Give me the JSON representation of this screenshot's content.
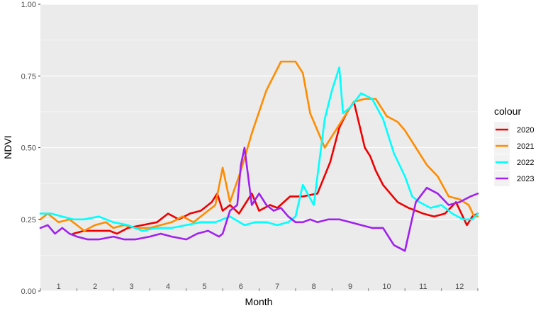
{
  "chart_data": {
    "type": "line",
    "xlabel": "Month",
    "ylabel": "NDVI",
    "ylim": [
      0,
      1
    ],
    "y_ticks": [
      "0.00",
      "0.25",
      "0.50",
      "0.75",
      "1.00"
    ],
    "x_month_labels": [
      "1",
      "2",
      "3",
      "4",
      "5",
      "6",
      "7",
      "8",
      "9",
      "10",
      "11",
      "12"
    ],
    "xlim": [
      0,
      12
    ],
    "grid": true,
    "legend": {
      "title": "colour",
      "position": "right"
    },
    "series": [
      {
        "name": "2020",
        "color": "#ee0000",
        "x": [
          0.9,
          1.2,
          1.6,
          1.9,
          2.1,
          2.4,
          2.8,
          3.2,
          3.5,
          3.8,
          4.1,
          4.4,
          4.7,
          4.85,
          5.0,
          5.2,
          5.45,
          5.6,
          5.8,
          6.0,
          6.3,
          6.5,
          6.85,
          7.2,
          7.6,
          7.95,
          8.2,
          8.4,
          8.6,
          8.9,
          9.05,
          9.2,
          9.4,
          9.6,
          9.8,
          10.1,
          10.5,
          10.8,
          11.1,
          11.4,
          11.7,
          11.85,
          12.0
        ],
        "y": [
          0.2,
          0.21,
          0.21,
          0.21,
          0.2,
          0.22,
          0.23,
          0.24,
          0.27,
          0.25,
          0.27,
          0.28,
          0.31,
          0.34,
          0.28,
          0.3,
          0.27,
          0.3,
          0.34,
          0.28,
          0.3,
          0.29,
          0.33,
          0.33,
          0.34,
          0.45,
          0.57,
          0.62,
          0.66,
          0.5,
          0.47,
          0.42,
          0.37,
          0.34,
          0.31,
          0.29,
          0.27,
          0.26,
          0.27,
          0.31,
          0.23,
          0.26,
          0.27
        ]
      },
      {
        "name": "2021",
        "color": "#ff8c00",
        "x": [
          0.0,
          0.2,
          0.5,
          0.8,
          1.0,
          1.2,
          1.5,
          1.8,
          2.0,
          2.3,
          2.6,
          3.0,
          3.3,
          3.6,
          3.9,
          4.2,
          4.5,
          4.8,
          5.0,
          5.2,
          5.5,
          5.8,
          6.2,
          6.6,
          7.0,
          7.2,
          7.4,
          7.8,
          8.2,
          8.6,
          8.9,
          9.2,
          9.5,
          9.8,
          10.0,
          10.3,
          10.6,
          10.9,
          11.2,
          11.5,
          11.75,
          11.9,
          12.0
        ],
        "y": [
          0.25,
          0.27,
          0.24,
          0.25,
          0.23,
          0.21,
          0.23,
          0.24,
          0.22,
          0.23,
          0.22,
          0.22,
          0.23,
          0.24,
          0.26,
          0.24,
          0.27,
          0.3,
          0.43,
          0.31,
          0.42,
          0.55,
          0.7,
          0.8,
          0.8,
          0.76,
          0.62,
          0.5,
          0.58,
          0.66,
          0.67,
          0.67,
          0.61,
          0.59,
          0.56,
          0.5,
          0.44,
          0.4,
          0.33,
          0.32,
          0.3,
          0.26,
          0.26
        ]
      },
      {
        "name": "2022",
        "color": "#00ffff",
        "x": [
          0.0,
          0.3,
          0.6,
          0.9,
          1.2,
          1.6,
          2.0,
          2.4,
          2.8,
          3.2,
          3.6,
          4.0,
          4.4,
          4.8,
          5.2,
          5.6,
          5.9,
          6.2,
          6.5,
          6.8,
          7.0,
          7.2,
          7.5,
          7.8,
          8.0,
          8.2,
          8.3,
          8.5,
          8.8,
          9.1,
          9.4,
          9.7,
          10.0,
          10.2,
          10.4,
          10.7,
          11.0,
          11.3,
          11.6,
          11.85,
          12.0
        ],
        "y": [
          0.27,
          0.27,
          0.26,
          0.25,
          0.25,
          0.26,
          0.24,
          0.23,
          0.21,
          0.22,
          0.22,
          0.23,
          0.24,
          0.24,
          0.26,
          0.23,
          0.24,
          0.24,
          0.23,
          0.24,
          0.26,
          0.37,
          0.3,
          0.6,
          0.7,
          0.78,
          0.62,
          0.64,
          0.69,
          0.67,
          0.6,
          0.48,
          0.4,
          0.33,
          0.31,
          0.29,
          0.3,
          0.27,
          0.25,
          0.25,
          0.27
        ]
      },
      {
        "name": "2023",
        "color": "#a020f0",
        "x": [
          0.0,
          0.2,
          0.4,
          0.6,
          0.8,
          1.0,
          1.3,
          1.6,
          2.0,
          2.3,
          2.6,
          3.0,
          3.3,
          3.6,
          4.0,
          4.3,
          4.6,
          4.9,
          5.0,
          5.2,
          5.4,
          5.5,
          5.6,
          5.8,
          6.0,
          6.2,
          6.4,
          6.6,
          6.8,
          7.0,
          7.2,
          7.4,
          7.6,
          7.9,
          8.2,
          8.5,
          8.8,
          9.1,
          9.4,
          9.7,
          10.0,
          10.3,
          10.6,
          10.9,
          11.2,
          11.5,
          11.8,
          12.0
        ],
        "y": [
          0.22,
          0.23,
          0.2,
          0.22,
          0.2,
          0.19,
          0.18,
          0.18,
          0.19,
          0.18,
          0.18,
          0.19,
          0.2,
          0.19,
          0.18,
          0.2,
          0.21,
          0.19,
          0.2,
          0.28,
          0.3,
          0.44,
          0.5,
          0.3,
          0.34,
          0.3,
          0.28,
          0.29,
          0.26,
          0.24,
          0.24,
          0.25,
          0.24,
          0.25,
          0.25,
          0.24,
          0.23,
          0.22,
          0.22,
          0.16,
          0.14,
          0.31,
          0.36,
          0.34,
          0.3,
          0.31,
          0.33,
          0.34
        ]
      }
    ]
  }
}
